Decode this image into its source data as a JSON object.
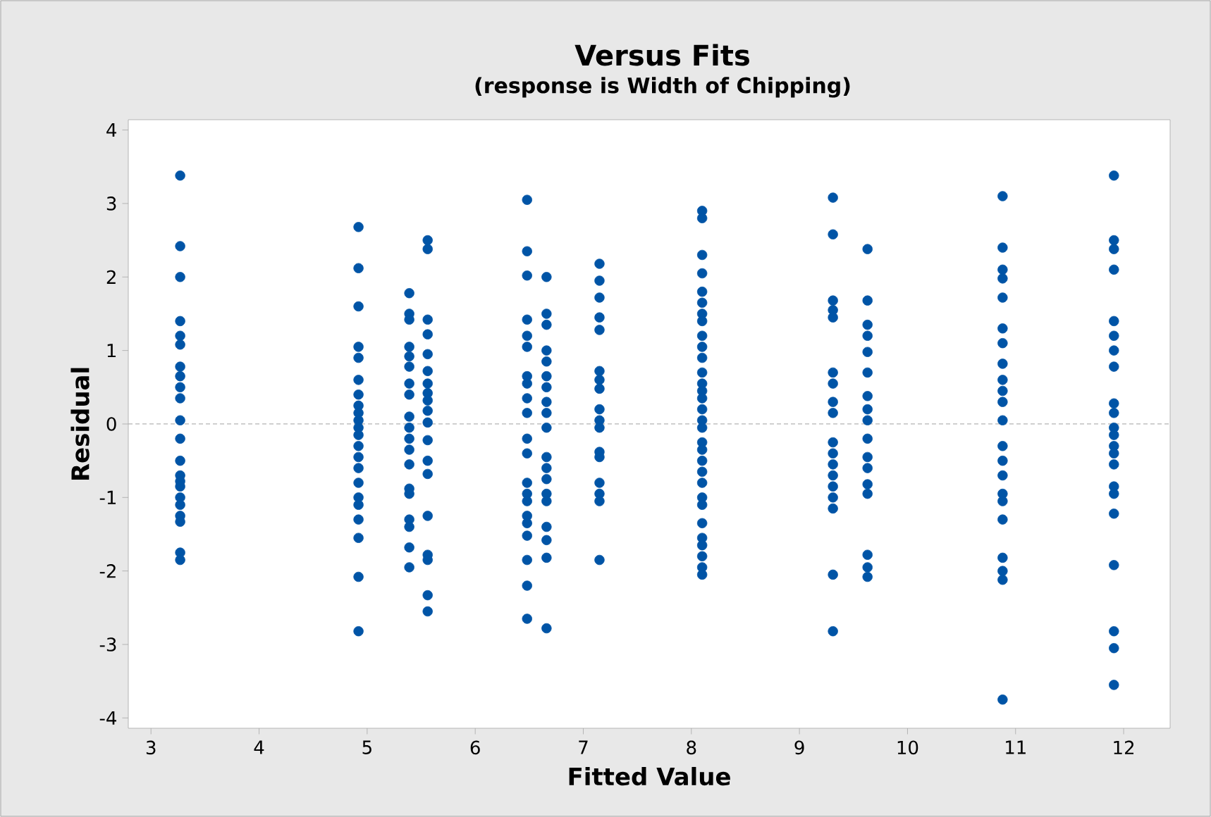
{
  "chart_data": {
    "type": "scatter",
    "title": "Versus Fits",
    "subtitle": "(response is Width of Chipping)",
    "xlabel": "Fitted Value",
    "ylabel": "Residual",
    "xlim": [
      2.79,
      12.43
    ],
    "ylim": [
      -4.14,
      4.14
    ],
    "xticks": [
      3,
      4,
      5,
      6,
      7,
      8,
      9,
      10,
      11,
      12
    ],
    "yticks": [
      -4,
      -3,
      -2,
      -1,
      0,
      1,
      2,
      3,
      4
    ],
    "grid": false,
    "marker": "circle",
    "legend": false,
    "ref_lines": [
      {
        "axis": "y",
        "value": 0,
        "color": "#b4b4b4",
        "line_style": "dashed"
      }
    ],
    "series": [
      {
        "color": "#0054a6",
        "x": [
          3.27,
          3.27,
          3.27,
          3.27,
          3.27,
          3.27,
          3.27,
          3.27,
          3.27,
          3.27,
          3.27,
          3.27,
          3.27,
          3.27,
          3.27,
          3.27,
          3.27,
          3.27,
          3.27,
          3.27,
          3.27,
          3.27
        ],
        "values": [
          3.38,
          2.42,
          2.0,
          1.4,
          1.2,
          1.08,
          0.78,
          0.65,
          0.5,
          0.35,
          0.05,
          -0.2,
          -0.5,
          -0.7,
          -0.78,
          -0.85,
          -1.0,
          -1.1,
          -1.25,
          -1.33,
          -1.75,
          -1.85
        ]
      },
      {
        "color": "#0054a6",
        "x": [
          4.92,
          4.92,
          4.92,
          4.92,
          4.92,
          4.92,
          4.92,
          4.92,
          4.92,
          4.92,
          4.92,
          4.92,
          4.92,
          4.92,
          4.92,
          4.92,
          4.92,
          4.92,
          4.92,
          4.92,
          4.92,
          4.92
        ],
        "values": [
          2.68,
          2.12,
          1.6,
          1.05,
          0.9,
          0.6,
          0.4,
          0.25,
          0.15,
          0.05,
          -0.05,
          -0.15,
          -0.3,
          -0.45,
          -0.6,
          -0.8,
          -1.0,
          -1.1,
          -1.3,
          -1.55,
          -2.08,
          -2.82
        ]
      },
      {
        "color": "#0054a6",
        "x": [
          5.39,
          5.39,
          5.39,
          5.39,
          5.39,
          5.39,
          5.39,
          5.39,
          5.39,
          5.39,
          5.39,
          5.39,
          5.39,
          5.39,
          5.39,
          5.39,
          5.39,
          5.39,
          5.39
        ],
        "values": [
          1.78,
          1.5,
          1.42,
          1.05,
          0.92,
          0.78,
          0.55,
          0.4,
          0.1,
          -0.05,
          -0.2,
          -0.35,
          -0.55,
          -0.88,
          -0.95,
          -1.3,
          -1.4,
          -1.68,
          -1.95
        ]
      },
      {
        "color": "#0054a6",
        "x": [
          5.56,
          5.56,
          5.56,
          5.56,
          5.56,
          5.56,
          5.56,
          5.56,
          5.56,
          5.56,
          5.56,
          5.56,
          5.56,
          5.56,
          5.56,
          5.56,
          5.56,
          5.56,
          5.56
        ],
        "values": [
          2.5,
          2.38,
          1.42,
          1.22,
          0.95,
          0.72,
          0.55,
          0.42,
          0.32,
          0.18,
          0.02,
          -0.22,
          -0.5,
          -0.68,
          -1.25,
          -1.78,
          -1.85,
          -2.33,
          -2.55
        ]
      },
      {
        "color": "#0054a6",
        "x": [
          6.48,
          6.48,
          6.48,
          6.48,
          6.48,
          6.48,
          6.48,
          6.48,
          6.48,
          6.48,
          6.48,
          6.48,
          6.48,
          6.48,
          6.48,
          6.48,
          6.48,
          6.48,
          6.48,
          6.48,
          6.48
        ],
        "values": [
          3.05,
          2.35,
          2.02,
          1.42,
          1.2,
          1.05,
          0.65,
          0.55,
          0.35,
          0.15,
          -0.2,
          -0.4,
          -0.8,
          -0.95,
          -1.05,
          -1.25,
          -1.35,
          -1.52,
          -1.85,
          -2.2,
          -2.65
        ]
      },
      {
        "color": "#0054a6",
        "x": [
          6.66,
          6.66,
          6.66,
          6.66,
          6.66,
          6.66,
          6.66,
          6.66,
          6.66,
          6.66,
          6.66,
          6.66,
          6.66,
          6.66,
          6.66,
          6.66,
          6.66,
          6.66,
          6.66
        ],
        "values": [
          2.0,
          1.5,
          1.35,
          1.0,
          0.85,
          0.65,
          0.5,
          0.3,
          0.15,
          -0.05,
          -0.45,
          -0.6,
          -0.75,
          -0.95,
          -1.05,
          -1.4,
          -1.58,
          -1.82,
          -2.78
        ]
      },
      {
        "color": "#0054a6",
        "x": [
          7.15,
          7.15,
          7.15,
          7.15,
          7.15,
          7.15,
          7.15,
          7.15,
          7.15,
          7.15,
          7.15,
          7.15,
          7.15,
          7.15,
          7.15,
          7.15,
          7.15
        ],
        "values": [
          2.18,
          1.95,
          1.72,
          1.45,
          1.28,
          0.72,
          0.6,
          0.48,
          0.2,
          0.05,
          -0.05,
          -0.38,
          -0.45,
          -0.8,
          -0.95,
          -1.05,
          -1.85
        ]
      },
      {
        "color": "#0054a6",
        "x": [
          8.1,
          8.1,
          8.1,
          8.1,
          8.1,
          8.1,
          8.1,
          8.1,
          8.1,
          8.1,
          8.1,
          8.1,
          8.1,
          8.1,
          8.1,
          8.1,
          8.1,
          8.1,
          8.1,
          8.1,
          8.1,
          8.1,
          8.1,
          8.1,
          8.1,
          8.1,
          8.1,
          8.1,
          8.1,
          8.1,
          8.1
        ],
        "values": [
          2.9,
          2.8,
          2.3,
          2.05,
          1.8,
          1.65,
          1.5,
          1.4,
          1.2,
          1.05,
          0.9,
          0.7,
          0.55,
          0.45,
          0.35,
          0.2,
          0.05,
          -0.05,
          -0.25,
          -0.35,
          -0.5,
          -0.65,
          -0.8,
          -1.0,
          -1.1,
          -1.35,
          -1.55,
          -1.65,
          -1.8,
          -1.95,
          -2.05
        ]
      },
      {
        "color": "#0054a6",
        "x": [
          9.31,
          9.31,
          9.31,
          9.31,
          9.31,
          9.31,
          9.31,
          9.31,
          9.31,
          9.31,
          9.31,
          9.31,
          9.31,
          9.31,
          9.31,
          9.31,
          9.31,
          9.31
        ],
        "values": [
          3.08,
          2.58,
          1.68,
          1.55,
          1.45,
          0.7,
          0.55,
          0.3,
          0.15,
          -0.25,
          -0.4,
          -0.55,
          -0.7,
          -0.85,
          -1.0,
          -1.15,
          -2.05,
          -2.82
        ]
      },
      {
        "color": "#0054a6",
        "x": [
          9.63,
          9.63,
          9.63,
          9.63,
          9.63,
          9.63,
          9.63,
          9.63,
          9.63,
          9.63,
          9.63,
          9.63,
          9.63,
          9.63,
          9.63,
          9.63,
          9.63
        ],
        "values": [
          2.38,
          1.68,
          1.35,
          1.2,
          0.98,
          0.7,
          0.38,
          0.2,
          0.05,
          -0.2,
          -0.45,
          -0.6,
          -0.82,
          -0.95,
          -1.78,
          -1.95,
          -2.08
        ]
      },
      {
        "color": "#0054a6",
        "x": [
          10.88,
          10.88,
          10.88,
          10.88,
          10.88,
          10.88,
          10.88,
          10.88,
          10.88,
          10.88,
          10.88,
          10.88,
          10.88,
          10.88,
          10.88,
          10.88,
          10.88,
          10.88,
          10.88,
          10.88,
          10.88,
          10.88
        ],
        "values": [
          3.1,
          2.4,
          2.1,
          1.98,
          1.72,
          1.3,
          1.1,
          0.82,
          0.6,
          0.45,
          0.3,
          0.05,
          -0.3,
          -0.5,
          -0.7,
          -0.95,
          -1.05,
          -1.3,
          -1.82,
          -2.0,
          -2.12,
          -3.75
        ]
      },
      {
        "color": "#0054a6",
        "x": [
          11.91,
          11.91,
          11.91,
          11.91,
          11.91,
          11.91,
          11.91,
          11.91,
          11.91,
          11.91,
          11.91,
          11.91,
          11.91,
          11.91,
          11.91,
          11.91,
          11.91,
          11.91,
          11.91,
          11.91,
          11.91,
          11.91
        ],
        "values": [
          3.38,
          2.5,
          2.38,
          2.1,
          1.4,
          1.2,
          1.0,
          0.78,
          0.28,
          0.15,
          -0.05,
          -0.15,
          -0.3,
          -0.4,
          -0.55,
          -0.85,
          -0.95,
          -1.22,
          -1.92,
          -2.82,
          -3.05,
          -3.55
        ]
      }
    ]
  }
}
